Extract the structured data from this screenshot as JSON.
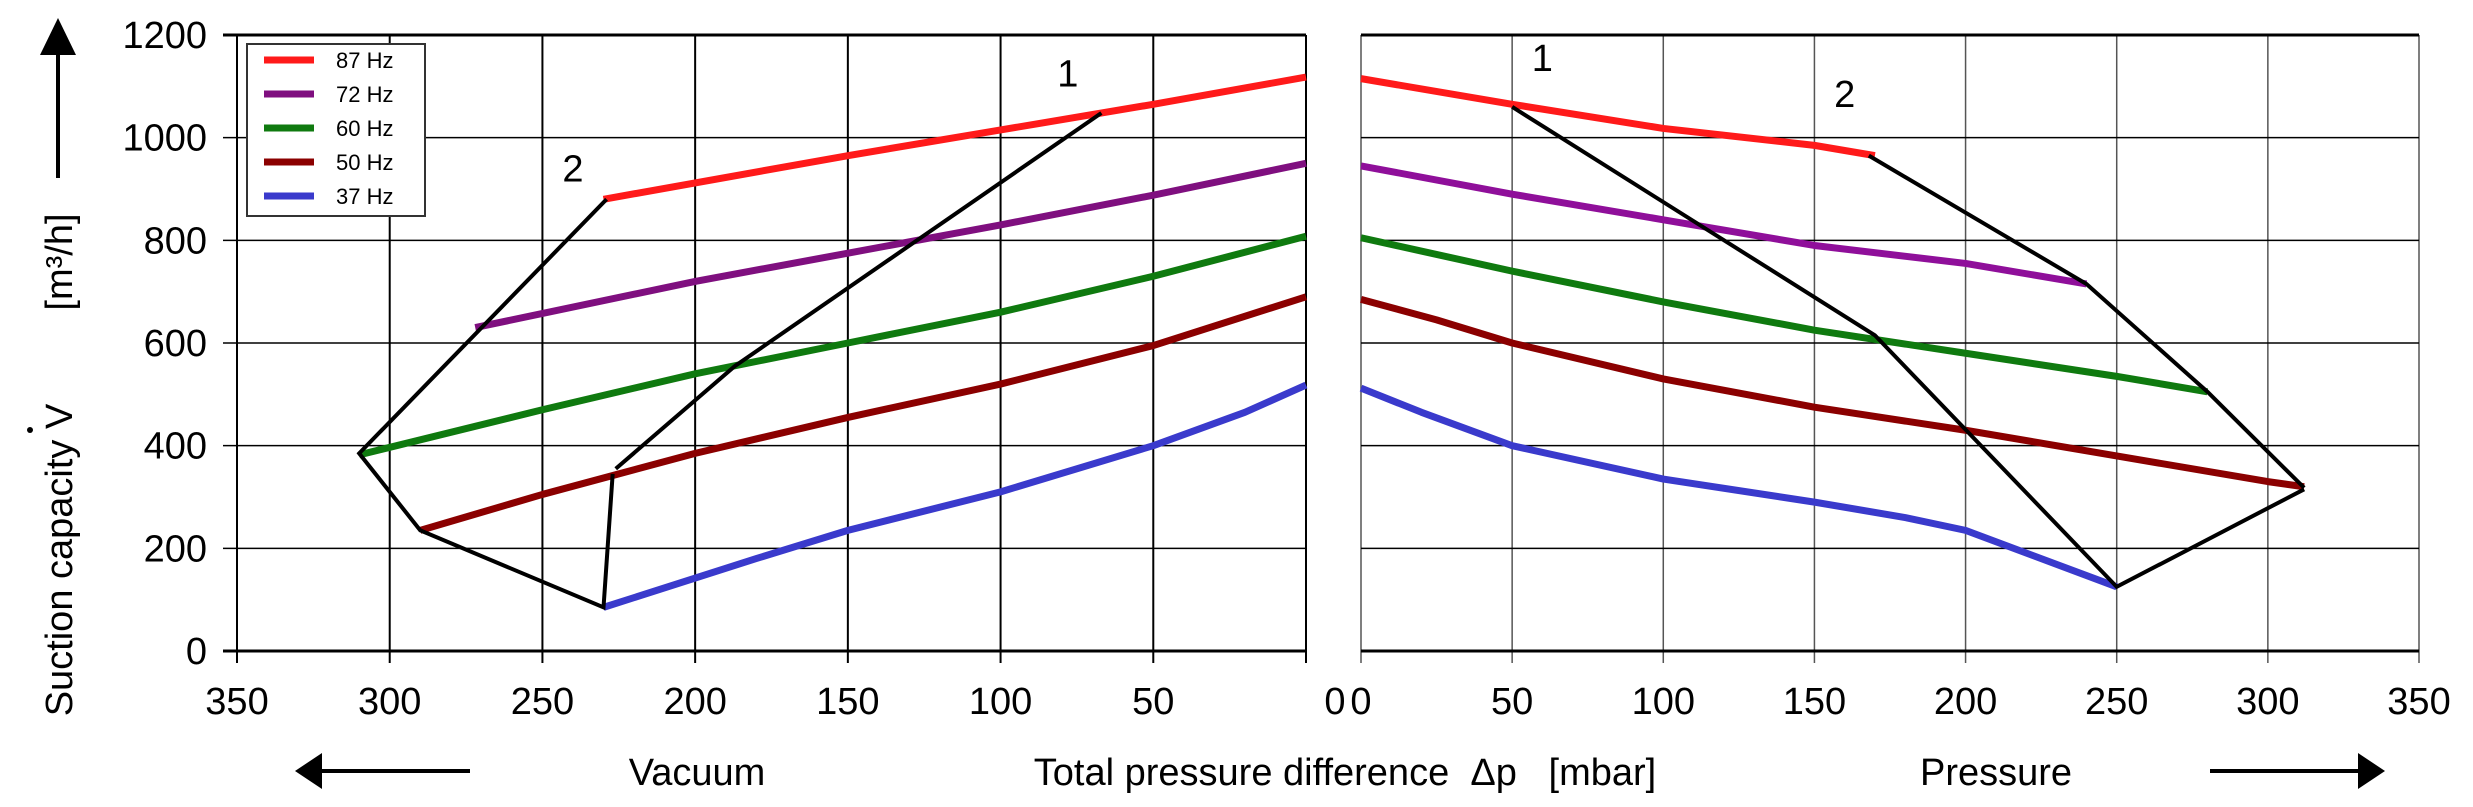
{
  "chart_data": [
    {
      "type": "line",
      "panel": "vacuum",
      "xlabel": "Vacuum",
      "ylabel": "Suction capacity V [m³/h]",
      "xlim": [
        350,
        0
      ],
      "ylim": [
        0,
        1200
      ],
      "xticks": [
        350,
        300,
        250,
        200,
        150,
        100,
        50
      ],
      "yticks": [
        0,
        200,
        400,
        600,
        800,
        1000,
        1200
      ],
      "grid": true,
      "legend": "top-left",
      "series": [
        {
          "name": "87 Hz",
          "color": "#ff1a1a",
          "points": [
            [
              230,
              880
            ],
            [
              150,
              965
            ],
            [
              100,
              1015
            ],
            [
              50,
              1065
            ],
            [
              0,
              1118
            ]
          ]
        },
        {
          "name": "72 Hz",
          "color": "#7f0f7f",
          "points": [
            [
              272,
              630
            ],
            [
              200,
              720
            ],
            [
              150,
              775
            ],
            [
              100,
              830
            ],
            [
              50,
              888
            ],
            [
              0,
              950
            ]
          ]
        },
        {
          "name": "60 Hz",
          "color": "#0f7a0f",
          "points": [
            [
              310,
              382
            ],
            [
              250,
              470
            ],
            [
              200,
              540
            ],
            [
              150,
              600
            ],
            [
              100,
              660
            ],
            [
              50,
              730
            ],
            [
              0,
              808
            ]
          ]
        },
        {
          "name": "50 Hz",
          "color": "#8b0000",
          "points": [
            [
              290,
              235
            ],
            [
              250,
              305
            ],
            [
              200,
              385
            ],
            [
              150,
              455
            ],
            [
              100,
              520
            ],
            [
              50,
              595
            ],
            [
              0,
              690
            ]
          ]
        },
        {
          "name": "37 Hz",
          "color": "#3a3acc",
          "points": [
            [
              230,
              85
            ],
            [
              180,
              180
            ],
            [
              150,
              235
            ],
            [
              100,
              310
            ],
            [
              50,
              400
            ],
            [
              20,
              465
            ],
            [
              0,
              518
            ]
          ]
        }
      ],
      "limit_lines": [
        {
          "name": "1",
          "points": [
            [
              67,
              1048
            ],
            [
              187,
              555
            ],
            [
              226,
              355
            ]
          ]
        },
        {
          "name": "2",
          "points": [
            [
              229,
              880
            ],
            [
              310,
              385
            ],
            [
              290,
              235
            ],
            [
              230,
              85
            ],
            [
              227,
              345
            ]
          ]
        }
      ],
      "annotations": [
        {
          "text": "1",
          "x": 78,
          "y": 1100
        },
        {
          "text": "2",
          "x": 240,
          "y": 915
        }
      ]
    },
    {
      "type": "line",
      "panel": "pressure",
      "xlabel": "Pressure",
      "ylabel": "Suction capacity V [m³/h]",
      "xlim": [
        0,
        350
      ],
      "ylim": [
        0,
        1200
      ],
      "xticks": [
        0,
        50,
        100,
        150,
        200,
        250,
        300,
        350
      ],
      "yticks": [
        0,
        200,
        400,
        600,
        800,
        1000,
        1200
      ],
      "grid": true,
      "series": [
        {
          "name": "87 Hz",
          "color": "#ff1a1a",
          "points": [
            [
              0,
              1115
            ],
            [
              50,
              1065
            ],
            [
              100,
              1018
            ],
            [
              150,
              985
            ],
            [
              170,
              965
            ]
          ]
        },
        {
          "name": "72 Hz",
          "color": "#8f0f9a",
          "points": [
            [
              0,
              945
            ],
            [
              50,
              890
            ],
            [
              100,
              840
            ],
            [
              150,
              790
            ],
            [
              200,
              755
            ],
            [
              240,
              715
            ]
          ]
        },
        {
          "name": "60 Hz",
          "color": "#0f7a0f",
          "points": [
            [
              0,
              805
            ],
            [
              50,
              740
            ],
            [
              100,
              680
            ],
            [
              150,
              625
            ],
            [
              200,
              580
            ],
            [
              250,
              535
            ],
            [
              280,
              505
            ]
          ]
        },
        {
          "name": "50 Hz",
          "color": "#8b0000",
          "points": [
            [
              0,
              685
            ],
            [
              25,
              645
            ],
            [
              50,
              600
            ],
            [
              100,
              530
            ],
            [
              150,
              475
            ],
            [
              200,
              430
            ],
            [
              250,
              380
            ],
            [
              300,
              330
            ],
            [
              312,
              320
            ]
          ]
        },
        {
          "name": "37 Hz",
          "color": "#3a3acc",
          "points": [
            [
              0,
              512
            ],
            [
              20,
              465
            ],
            [
              50,
              400
            ],
            [
              100,
              335
            ],
            [
              150,
              290
            ],
            [
              180,
              260
            ],
            [
              200,
              235
            ],
            [
              250,
              125
            ]
          ]
        }
      ],
      "limit_lines": [
        {
          "name": "1",
          "points": [
            [
              50,
              1060
            ],
            [
              170,
              615
            ],
            [
              250,
              125
            ],
            [
              312,
              315
            ]
          ]
        },
        {
          "name": "2",
          "points": [
            [
              168,
              965
            ],
            [
              240,
              715
            ],
            [
              280,
              505
            ],
            [
              312,
              318
            ]
          ]
        }
      ],
      "annotations": [
        {
          "text": "1",
          "x": 60,
          "y": 1130
        },
        {
          "text": "2",
          "x": 160,
          "y": 1060
        }
      ]
    }
  ],
  "labels": {
    "y_axis": "Suction capacity V",
    "y_unit": "[m³/h]",
    "x_center": "Total pressure difference  Δp   [mbar]",
    "vacuum": "Vacuum",
    "pressure": "Pressure"
  },
  "legend": [
    {
      "label": "87 Hz",
      "color": "#ff1a1a"
    },
    {
      "label": "72 Hz",
      "color": "#7f0f7f"
    },
    {
      "label": "60 Hz",
      "color": "#0f7a0f"
    },
    {
      "label": "50 Hz",
      "color": "#8b0000"
    },
    {
      "label": "37 Hz",
      "color": "#3a3acc"
    }
  ]
}
